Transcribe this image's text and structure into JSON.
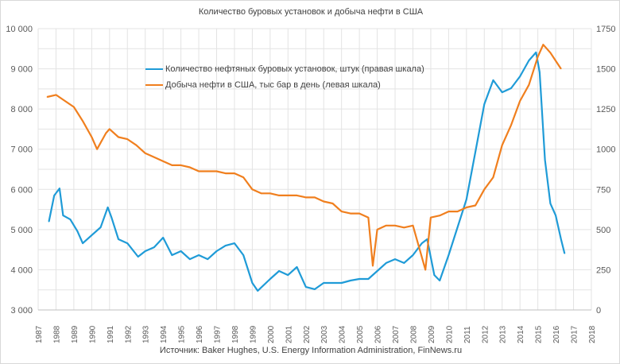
{
  "chart_data": {
    "type": "line",
    "title": "Количество буровых установок и добыча нефти в США",
    "source": "Источник: Baker Hughes, U.S. Energy Information Administration, FinNews.ru",
    "x_ticks": [
      "1987",
      "1988",
      "1989",
      "1990",
      "1991",
      "1992",
      "1993",
      "1994",
      "1995",
      "1996",
      "1997",
      "1998",
      "1999",
      "2000",
      "2001",
      "2002",
      "2003",
      "2004",
      "2005",
      "2006",
      "2007",
      "2008",
      "2009",
      "2010",
      "2011",
      "2012",
      "2013",
      "2014",
      "2015",
      "2016",
      "2017",
      "2018"
    ],
    "xlim": [
      1987,
      2018
    ],
    "y_left": {
      "ylim": [
        3000,
        10000
      ],
      "ticks": [
        "3 000",
        "4 000",
        "5 000",
        "6 000",
        "7 000",
        "8 000",
        "9 000",
        "10 000"
      ]
    },
    "y_right": {
      "ylim": [
        0,
        1750
      ],
      "ticks": [
        "0",
        "250",
        "500",
        "750",
        "1000",
        "1250",
        "1500",
        "1750"
      ]
    },
    "grid": true,
    "legend_position": "top-center",
    "series": [
      {
        "name": "Количество нефтяных буровых установок, штук (правая шкала)",
        "axis": "right",
        "color": "#1f9bd7",
        "x": [
          1987.6,
          1987.9,
          1988.2,
          1988.4,
          1988.8,
          1989.2,
          1989.5,
          1990.0,
          1990.5,
          1990.9,
          1991.1,
          1991.5,
          1992.0,
          1992.6,
          1993.0,
          1993.5,
          1994.0,
          1994.5,
          1995.0,
          1995.5,
          1996.0,
          1996.5,
          1997.0,
          1997.5,
          1998.0,
          1998.5,
          1999.0,
          1999.3,
          2000.0,
          2000.5,
          2001.0,
          2001.5,
          2002.0,
          2002.5,
          2003.0,
          2003.5,
          2004.0,
          2004.5,
          2005.0,
          2005.5,
          2006.0,
          2006.5,
          2007.0,
          2007.5,
          2008.0,
          2008.5,
          2008.8,
          2009.2,
          2009.5,
          2010.0,
          2010.5,
          2011.0,
          2011.5,
          2012.0,
          2012.5,
          2013.0,
          2013.5,
          2014.0,
          2014.5,
          2014.9,
          2015.1,
          2015.4,
          2015.7,
          2016.0,
          2016.3,
          2016.5
        ],
        "values": [
          549,
          712,
          756,
          588,
          563,
          490,
          415,
          465,
          514,
          638,
          578,
          440,
          415,
          331,
          366,
          390,
          450,
          341,
          366,
          316,
          341,
          316,
          366,
          400,
          415,
          341,
          168,
          119,
          193,
          242,
          217,
          267,
          143,
          129,
          168,
          168,
          168,
          183,
          193,
          193,
          242,
          292,
          316,
          292,
          341,
          415,
          440,
          217,
          183,
          341,
          514,
          687,
          984,
          1280,
          1429,
          1354,
          1379,
          1453,
          1552,
          1602,
          1478,
          934,
          662,
          588,
          440,
          351
        ]
      },
      {
        "name": "Добыча нефти в США, тыс бар в день (левая шкала)",
        "axis": "left",
        "color": "#f07f1e",
        "x": [
          1987.5,
          1988.0,
          1988.5,
          1989.0,
          1989.5,
          1990.0,
          1990.3,
          1990.8,
          1991.0,
          1991.5,
          1992.0,
          1992.5,
          1993.0,
          1993.5,
          1994.0,
          1994.5,
          1995.0,
          1995.5,
          1996.0,
          1996.5,
          1997.0,
          1997.5,
          1998.0,
          1998.5,
          1999.0,
          1999.5,
          2000.0,
          2000.5,
          2001.0,
          2001.5,
          2002.0,
          2002.5,
          2003.0,
          2003.5,
          2004.0,
          2004.5,
          2005.0,
          2005.5,
          2005.75,
          2006.0,
          2006.5,
          2007.0,
          2007.5,
          2008.0,
          2008.7,
          2009.0,
          2009.5,
          2010.0,
          2010.5,
          2011.0,
          2011.5,
          2012.0,
          2012.5,
          2013.0,
          2013.5,
          2014.0,
          2014.5,
          2015.0,
          2015.3,
          2015.7,
          2016.0,
          2016.3
        ],
        "values": [
          8300,
          8350,
          8200,
          8050,
          7700,
          7300,
          7000,
          7400,
          7500,
          7300,
          7250,
          7100,
          6900,
          6800,
          6700,
          6600,
          6600,
          6550,
          6450,
          6450,
          6450,
          6400,
          6400,
          6300,
          6000,
          5900,
          5900,
          5850,
          5850,
          5850,
          5800,
          5800,
          5700,
          5650,
          5450,
          5400,
          5400,
          5300,
          4100,
          5000,
          5100,
          5100,
          5050,
          5100,
          4000,
          5300,
          5350,
          5450,
          5450,
          5550,
          5600,
          6000,
          6300,
          7100,
          7600,
          8200,
          8600,
          9300,
          9600,
          9400,
          9200,
          9000
        ]
      }
    ]
  }
}
